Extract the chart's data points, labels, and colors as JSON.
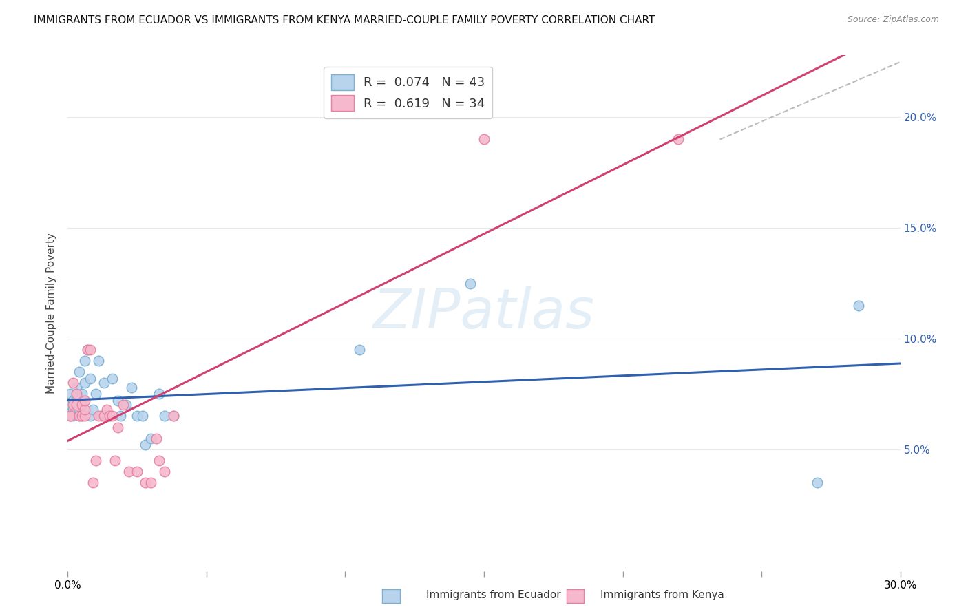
{
  "title": "IMMIGRANTS FROM ECUADOR VS IMMIGRANTS FROM KENYA MARRIED-COUPLE FAMILY POVERTY CORRELATION CHART",
  "source": "Source: ZipAtlas.com",
  "ylabel": "Married-Couple Family Poverty",
  "xlim": [
    0.0,
    0.3
  ],
  "ylim": [
    -0.005,
    0.228
  ],
  "xticks": [
    0.0,
    0.05,
    0.1,
    0.15,
    0.2,
    0.25,
    0.3
  ],
  "yticks": [
    0.05,
    0.1,
    0.15,
    0.2
  ],
  "ytick_labels_right": [
    "5.0%",
    "10.0%",
    "15.0%",
    "20.0%"
  ],
  "ecuador_fill": "#b8d4ed",
  "ecuador_edge": "#7bafd4",
  "kenya_fill": "#f5b8cc",
  "kenya_edge": "#e87fa0",
  "regression_ecuador_color": "#3060b0",
  "regression_kenya_color": "#d04070",
  "ecuador_R": 0.074,
  "ecuador_N": 43,
  "kenya_R": 0.619,
  "kenya_N": 34,
  "ecuador_x": [
    0.001,
    0.001,
    0.001,
    0.002,
    0.002,
    0.002,
    0.003,
    0.003,
    0.003,
    0.003,
    0.004,
    0.004,
    0.004,
    0.005,
    0.005,
    0.005,
    0.006,
    0.006,
    0.007,
    0.008,
    0.008,
    0.009,
    0.01,
    0.011,
    0.012,
    0.013,
    0.015,
    0.016,
    0.018,
    0.019,
    0.021,
    0.023,
    0.025,
    0.027,
    0.028,
    0.03,
    0.033,
    0.035,
    0.038,
    0.105,
    0.145,
    0.27,
    0.285
  ],
  "ecuador_y": [
    0.065,
    0.07,
    0.075,
    0.065,
    0.068,
    0.072,
    0.07,
    0.073,
    0.075,
    0.078,
    0.065,
    0.068,
    0.085,
    0.065,
    0.07,
    0.075,
    0.08,
    0.09,
    0.095,
    0.065,
    0.082,
    0.068,
    0.075,
    0.09,
    0.065,
    0.08,
    0.065,
    0.082,
    0.072,
    0.065,
    0.07,
    0.078,
    0.065,
    0.065,
    0.052,
    0.055,
    0.075,
    0.065,
    0.065,
    0.095,
    0.125,
    0.035,
    0.115
  ],
  "kenya_x": [
    0.001,
    0.001,
    0.002,
    0.002,
    0.003,
    0.003,
    0.004,
    0.005,
    0.005,
    0.006,
    0.006,
    0.006,
    0.007,
    0.008,
    0.009,
    0.01,
    0.011,
    0.013,
    0.014,
    0.015,
    0.016,
    0.017,
    0.018,
    0.02,
    0.022,
    0.025,
    0.028,
    0.03,
    0.032,
    0.033,
    0.035,
    0.038,
    0.15,
    0.22
  ],
  "kenya_y": [
    0.065,
    0.065,
    0.07,
    0.08,
    0.07,
    0.075,
    0.065,
    0.065,
    0.07,
    0.065,
    0.068,
    0.072,
    0.095,
    0.095,
    0.035,
    0.045,
    0.065,
    0.065,
    0.068,
    0.065,
    0.065,
    0.045,
    0.06,
    0.07,
    0.04,
    0.04,
    0.035,
    0.035,
    0.055,
    0.045,
    0.04,
    0.065,
    0.19,
    0.19
  ],
  "dashed_line_x": [
    0.235,
    0.3
  ],
  "dashed_line_y": [
    0.19,
    0.225
  ],
  "watermark": "ZIPatlas",
  "background_color": "#ffffff",
  "grid_color": "#e8e8e8"
}
